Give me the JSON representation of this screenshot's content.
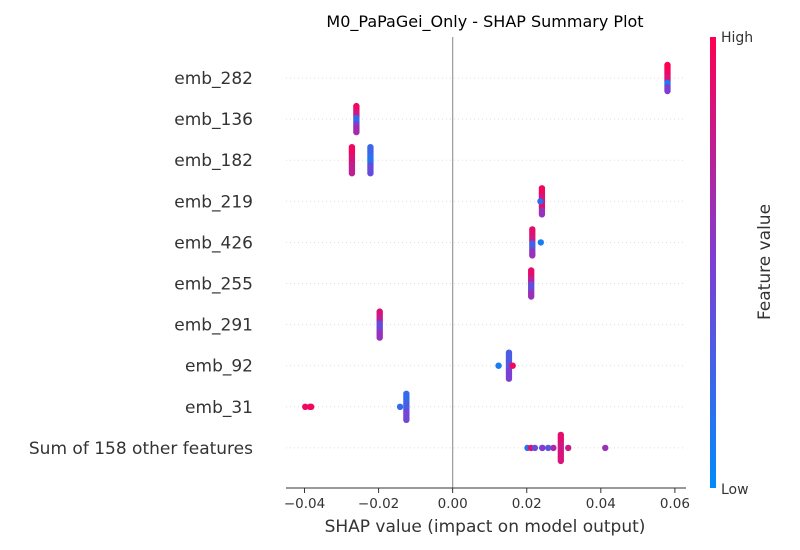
{
  "chart_data": {
    "type": "scatter",
    "title": "M0_PaPaGei_Only - SHAP Summary Plot",
    "xlabel": "SHAP value (impact on model output)",
    "xlim": [
      -0.045,
      0.063
    ],
    "xticks": [
      -0.04,
      -0.02,
      0.0,
      0.02,
      0.04,
      0.06
    ],
    "xtick_labels": [
      "−0.04",
      "−0.02",
      "0.00",
      "0.02",
      "0.04",
      "0.06"
    ],
    "features": [
      {
        "name": "emb_282",
        "points": [
          [
            0.058,
            1.0
          ],
          [
            0.058,
            0.95
          ],
          [
            0.058,
            0.85
          ],
          [
            0.058,
            0.1
          ],
          [
            0.058,
            0.5
          ]
        ]
      },
      {
        "name": "emb_136",
        "points": [
          [
            -0.026,
            0.95
          ],
          [
            -0.026,
            0.8
          ],
          [
            -0.026,
            0.2
          ],
          [
            -0.026,
            0.5
          ],
          [
            -0.026,
            0.65
          ]
        ]
      },
      {
        "name": "emb_182",
        "points": [
          [
            -0.0272,
            0.95
          ],
          [
            -0.0272,
            0.85
          ],
          [
            -0.0272,
            0.75
          ],
          [
            -0.0222,
            0.25
          ],
          [
            -0.0222,
            0.15
          ],
          [
            -0.0222,
            0.4
          ]
        ]
      },
      {
        "name": "emb_219",
        "points": [
          [
            0.0241,
            0.95
          ],
          [
            0.0241,
            0.85
          ],
          [
            0.0241,
            0.9
          ],
          [
            0.0237,
            0.2
          ],
          [
            0.0241,
            0.6
          ]
        ]
      },
      {
        "name": "emb_426",
        "points": [
          [
            0.0215,
            0.9
          ],
          [
            0.0215,
            0.8
          ],
          [
            0.0215,
            0.3
          ],
          [
            0.0238,
            0.1
          ],
          [
            0.0215,
            0.6
          ]
        ]
      },
      {
        "name": "emb_255",
        "points": [
          [
            0.0212,
            0.9
          ],
          [
            0.0212,
            0.75
          ],
          [
            0.0212,
            0.4
          ],
          [
            0.0212,
            0.6
          ]
        ]
      },
      {
        "name": "emb_291",
        "points": [
          [
            -0.0197,
            0.85
          ],
          [
            -0.0197,
            0.75
          ],
          [
            -0.0197,
            0.4
          ],
          [
            -0.0197,
            0.5
          ],
          [
            -0.0197,
            0.6
          ]
        ]
      },
      {
        "name": "emb_92",
        "points": [
          [
            0.0152,
            0.3
          ],
          [
            0.0152,
            0.35
          ],
          [
            0.0152,
            0.5
          ],
          [
            0.0162,
            0.95
          ],
          [
            0.0124,
            0.1
          ]
        ]
      },
      {
        "name": "emb_31",
        "points": [
          [
            -0.0398,
            0.95
          ],
          [
            -0.0385,
            0.9
          ],
          [
            -0.0382,
            0.95
          ],
          [
            -0.0125,
            0.2
          ],
          [
            -0.0125,
            0.3
          ],
          [
            -0.0125,
            0.45
          ],
          [
            -0.0142,
            0.2
          ]
        ]
      },
      {
        "name": "Sum of 158 other features",
        "points": [
          [
            0.0292,
            0.9
          ],
          [
            0.0292,
            0.8
          ],
          [
            0.0292,
            0.85
          ],
          [
            0.0242,
            0.6
          ],
          [
            0.0242,
            0.5
          ],
          [
            0.0272,
            0.7
          ],
          [
            0.0202,
            0.2
          ],
          [
            0.0212,
            0.9
          ],
          [
            0.0258,
            0.35
          ],
          [
            0.0312,
            0.8
          ],
          [
            0.0412,
            0.6
          ],
          [
            0.0222,
            0.4
          ]
        ]
      }
    ],
    "colorbar": {
      "label": "Feature value",
      "high": "High",
      "low": "Low",
      "low_color": "#008bfb",
      "high_color": "#ff0052"
    },
    "grid": false,
    "zero_line": true
  }
}
